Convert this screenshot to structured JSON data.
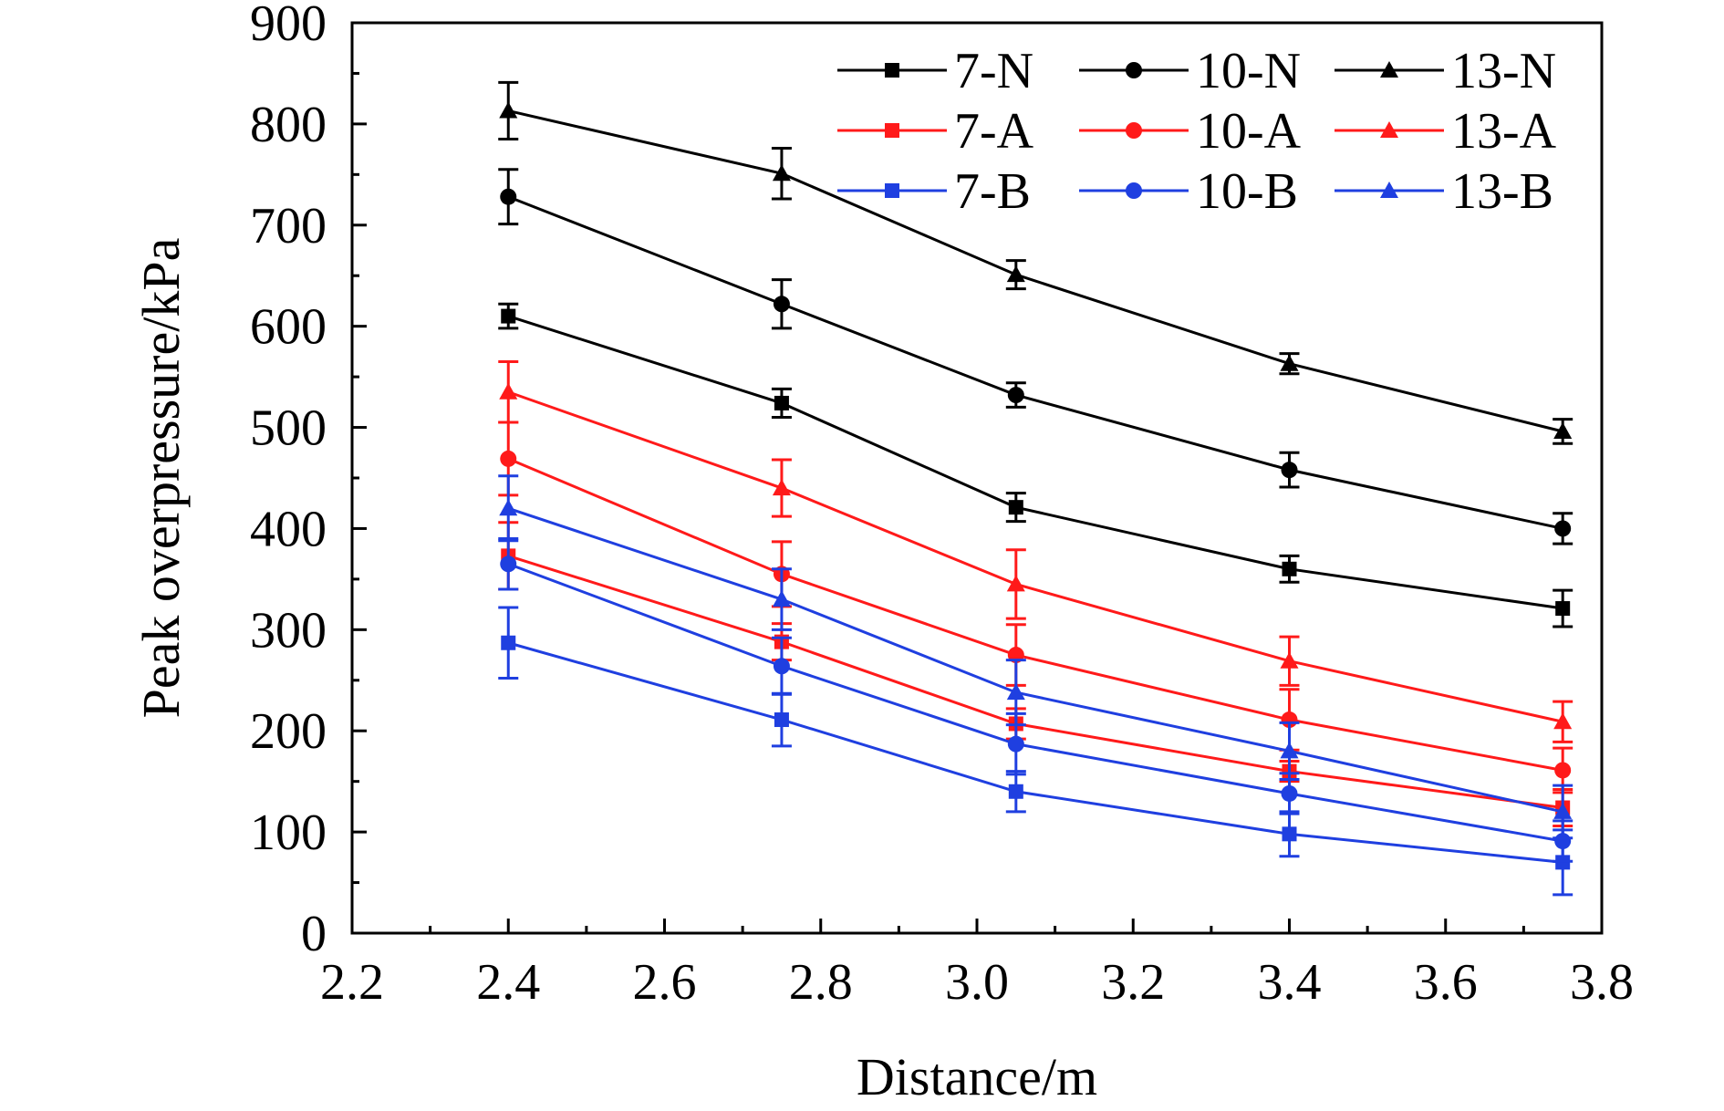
{
  "chart_data": {
    "type": "line",
    "xlabel": "Distance/m",
    "ylabel": "Peak overpressure/kPa",
    "xlim": [
      2.2,
      3.8
    ],
    "ylim": [
      0,
      900
    ],
    "xticks": [
      2.2,
      2.4,
      2.6,
      2.8,
      3.0,
      3.2,
      3.4,
      3.6,
      3.8
    ],
    "xtick_labels": [
      "2.2",
      "2.4",
      "2.6",
      "2.8",
      "3.0",
      "3.2",
      "3.4",
      "3.6",
      "3.8"
    ],
    "yticks": [
      0,
      100,
      200,
      300,
      400,
      500,
      600,
      700,
      800,
      900
    ],
    "ytick_labels": [
      "0",
      "100",
      "200",
      "300",
      "400",
      "500",
      "600",
      "700",
      "800",
      "900"
    ],
    "grid": false,
    "legend_position": "top-right",
    "x": [
      2.4,
      2.75,
      3.05,
      3.4,
      3.75
    ],
    "series": [
      {
        "name": "7-N",
        "color": "#000000",
        "marker": "square",
        "values": [
          610,
          524,
          421,
          360,
          321
        ],
        "errors": [
          12,
          14,
          14,
          13,
          18
        ]
      },
      {
        "name": "10-N",
        "color": "#000000",
        "marker": "circle",
        "values": [
          728,
          622,
          532,
          458,
          400
        ],
        "errors": [
          27,
          24,
          12,
          17,
          15
        ]
      },
      {
        "name": "13-N",
        "color": "#000000",
        "marker": "triangle",
        "values": [
          813,
          751,
          651,
          563,
          496
        ],
        "errors": [
          28,
          25,
          14,
          10,
          12
        ]
      },
      {
        "name": "7-A",
        "color": "#ff1a1a",
        "marker": "square",
        "values": [
          373,
          288,
          207,
          160,
          124
        ],
        "errors": [
          33,
          18,
          15,
          10,
          18
        ]
      },
      {
        "name": "10-A",
        "color": "#ff1a1a",
        "marker": "circle",
        "values": [
          469,
          355,
          275,
          211,
          161
        ],
        "errors": [
          36,
          32,
          30,
          30,
          22
        ]
      },
      {
        "name": "13-A",
        "color": "#ff1a1a",
        "marker": "triangle",
        "values": [
          535,
          440,
          345,
          269,
          209
        ],
        "errors": [
          30,
          28,
          34,
          24,
          20
        ]
      },
      {
        "name": "7-B",
        "color": "#1f3fe0",
        "marker": "square",
        "values": [
          287,
          211,
          140,
          98,
          70
        ],
        "errors": [
          35,
          26,
          20,
          22,
          32
        ]
      },
      {
        "name": "10-B",
        "color": "#1f3fe0",
        "marker": "circle",
        "values": [
          365,
          264,
          187,
          138,
          91
        ],
        "errors": [
          25,
          28,
          30,
          20,
          20
        ]
      },
      {
        "name": "13-B",
        "color": "#1f3fe0",
        "marker": "triangle",
        "values": [
          420,
          330,
          238,
          180,
          120
        ],
        "errors": [
          32,
          30,
          32,
          28,
          26
        ]
      }
    ]
  }
}
